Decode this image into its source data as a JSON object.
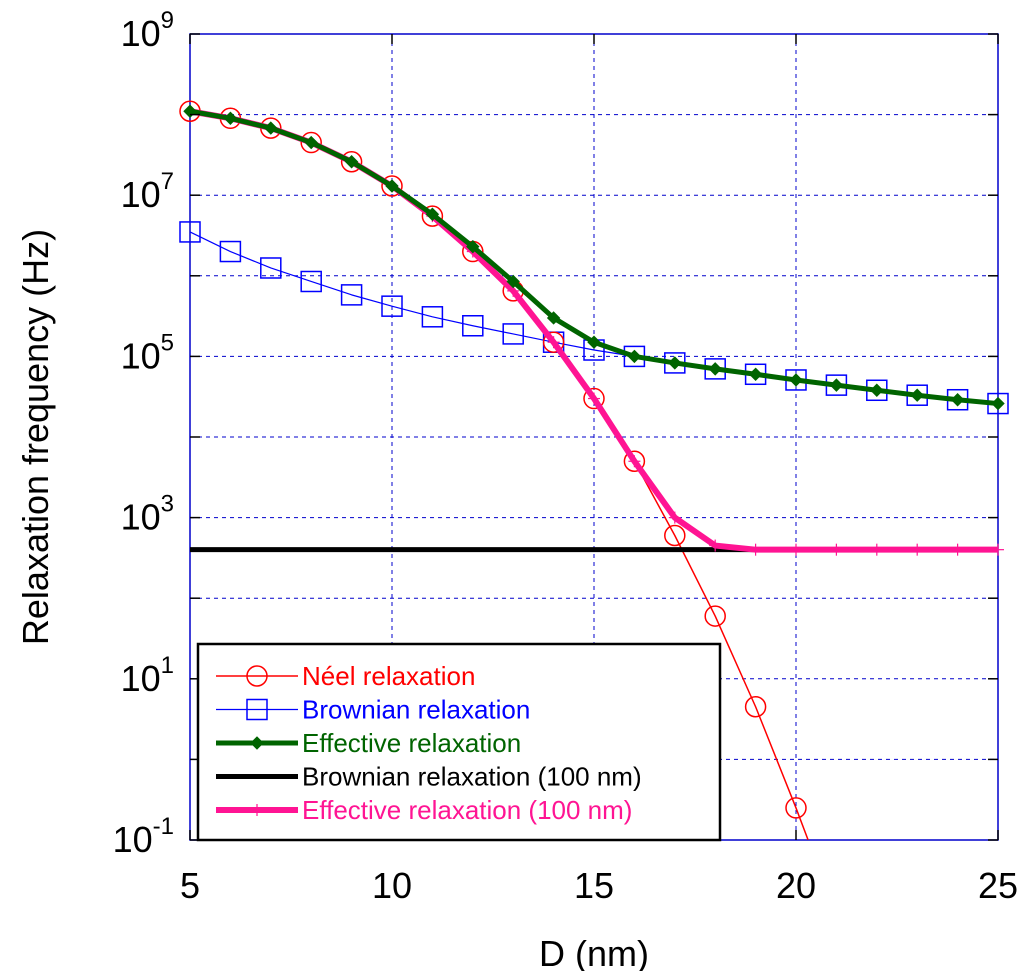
{
  "chart_data": {
    "type": "line",
    "xlabel": "D (nm)",
    "ylabel": "Relaxation frequency (Hz)",
    "xlim": [
      5,
      25
    ],
    "ylim": [
      0.1,
      1000000000
    ],
    "yscale": "log",
    "grid": true,
    "legend_position": "bottom-left",
    "x_ticks": [
      "5",
      "10",
      "15",
      "20",
      "25"
    ],
    "y_ticks": [
      {
        "base": "10",
        "exp": "9"
      },
      {
        "base": "10",
        "exp": "7"
      },
      {
        "base": "10",
        "exp": "5"
      },
      {
        "base": "10",
        "exp": "3"
      },
      {
        "base": "10",
        "exp": "1"
      },
      {
        "base": "10",
        "exp": "-1"
      }
    ],
    "series": [
      {
        "name": "Néel relaxation",
        "color": "#ff0000",
        "marker": "circle",
        "x": [
          5,
          6,
          7,
          8,
          9,
          10,
          11,
          12,
          13,
          14,
          15,
          16,
          17,
          18,
          19,
          20,
          20.3
        ],
        "y": [
          110000000,
          90000000,
          68000000,
          45000000,
          26000000,
          13000000,
          5500000,
          2000000,
          650000,
          150000,
          30000,
          5000,
          600,
          60,
          4.5,
          0.25,
          0.1
        ],
        "marker_count": 16
      },
      {
        "name": "Brownian relaxation",
        "color": "#0000ff",
        "marker": "square",
        "x": [
          5,
          6,
          7,
          8,
          9,
          10,
          11,
          12,
          13,
          14,
          15,
          16,
          17,
          18,
          19,
          20,
          21,
          22,
          23,
          24,
          25
        ],
        "y": [
          3500000,
          2000000,
          1250000,
          850000,
          580000,
          420000,
          310000,
          240000,
          190000,
          150000,
          120000,
          100000,
          83000,
          70000,
          60000,
          51000,
          44000,
          38000,
          33000,
          29000,
          26000
        ]
      },
      {
        "name": "Effective relaxation",
        "color": "#006400",
        "marker": "diamond",
        "x": [
          5,
          6,
          7,
          8,
          9,
          10,
          11,
          12,
          13,
          14,
          15,
          16,
          17,
          18,
          19,
          20,
          21,
          22,
          23,
          24,
          25
        ],
        "y": [
          110000000,
          90000000,
          68000000,
          45000000,
          26000000,
          13000000,
          5800000,
          2300000,
          850000,
          300000,
          150000,
          100000,
          83000,
          70000,
          60000,
          51000,
          44000,
          38000,
          33000,
          29000,
          26000
        ]
      },
      {
        "name": "Brownian relaxation (100 nm)",
        "color": "#000000",
        "marker": "none",
        "x": [
          5,
          25
        ],
        "y": [
          400,
          400
        ]
      },
      {
        "name": "Effective relaxation (100 nm)",
        "color": "#ff1493",
        "marker": "plus",
        "x": [
          5,
          6,
          7,
          8,
          9,
          10,
          11,
          12,
          13,
          14,
          15,
          16,
          17,
          18,
          19,
          20,
          21,
          22,
          23,
          24,
          25
        ],
        "y": [
          110000000,
          90000000,
          68000000,
          45000000,
          26000000,
          13000000,
          5500000,
          2000000,
          650000,
          150000,
          30000,
          5000,
          1000,
          450,
          400,
          400,
          400,
          400,
          400,
          400,
          400
        ]
      }
    ]
  }
}
